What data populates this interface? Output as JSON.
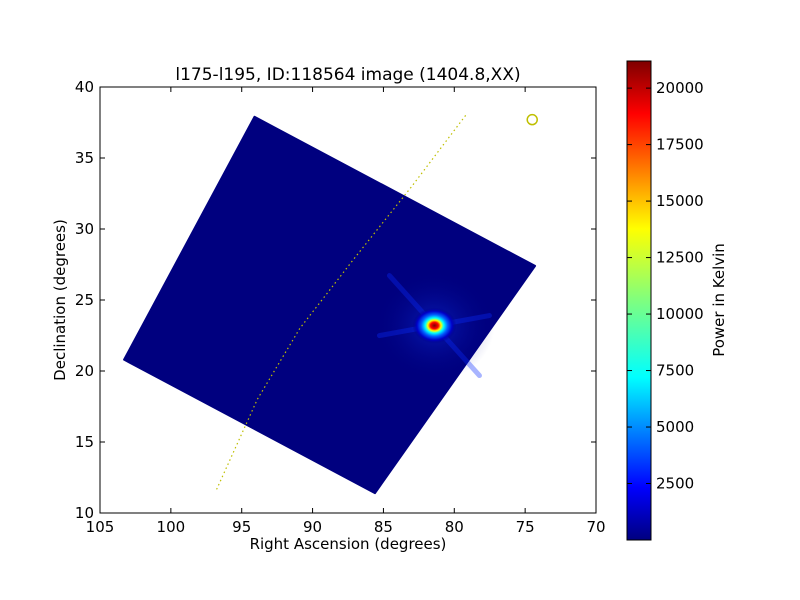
{
  "chart_data": {
    "type": "heatmap",
    "title": "l175-l195, ID:118564 image (1404.8,XX)",
    "xlabel": "Right Ascension (degrees)",
    "ylabel": "Declination (degrees)",
    "xlim": [
      105,
      70
    ],
    "ylim": [
      10,
      40
    ],
    "xticks": [
      105,
      100,
      95,
      90,
      85,
      80,
      75,
      70
    ],
    "yticks": [
      10,
      15,
      20,
      25,
      30,
      35,
      40
    ],
    "grid": false,
    "colormap": "jet",
    "colorbar": {
      "label": "Power in Kelvin",
      "range": [
        0,
        21200
      ],
      "ticks": [
        2500,
        5000,
        7500,
        10000,
        12500,
        15000,
        17500,
        20000
      ]
    },
    "coverage_polygon": [
      {
        "ra": 94.1,
        "dec": 37.9
      },
      {
        "ra": 74.3,
        "dec": 27.4
      },
      {
        "ra": 85.6,
        "dec": 11.4
      },
      {
        "ra": 103.3,
        "dec": 20.8
      }
    ],
    "background_level": 300,
    "sources": [
      {
        "ra": 81.4,
        "dec": 23.2,
        "peak": 21000
      }
    ],
    "galactic_plane": [
      {
        "ra": 79.2,
        "dec": 38.0
      },
      {
        "ra": 83.0,
        "dec": 33.0
      },
      {
        "ra": 87.0,
        "dec": 28.0
      },
      {
        "ra": 90.9,
        "dec": 23.0
      },
      {
        "ra": 93.9,
        "dec": 18.0
      },
      {
        "ra": 96.8,
        "dec": 11.6
      }
    ],
    "marker_circle": {
      "ra": 74.5,
      "dec": 37.7
    },
    "colors": {
      "plane_line": "#bfbf00",
      "marker": "#bfbf00",
      "background": "#00007f"
    }
  }
}
